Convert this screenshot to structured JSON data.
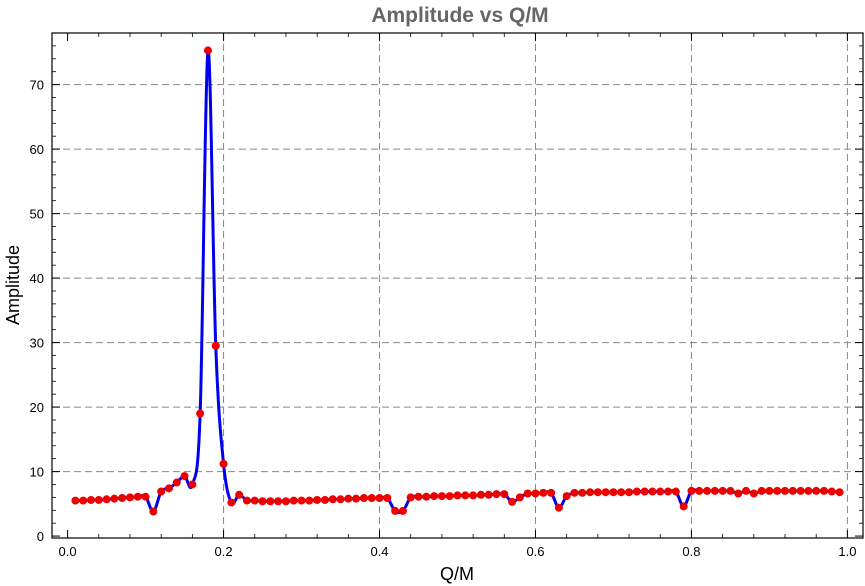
{
  "chart_data": {
    "type": "line",
    "title": "Amplitude vs Q/M",
    "xlabel": "Q/M",
    "ylabel": "Amplitude",
    "xlim": [
      -0.02,
      1.02
    ],
    "ylim": [
      -0.3,
      78
    ],
    "x_ticks": [
      0.0,
      0.2,
      0.4,
      0.6,
      0.8,
      1.0
    ],
    "x_tick_labels": [
      "0.0",
      "0.2",
      "0.4",
      "0.6",
      "0.8",
      "1.0"
    ],
    "y_ticks": [
      0,
      10,
      20,
      30,
      40,
      50,
      60,
      70
    ],
    "y_tick_labels": [
      "0",
      "10",
      "20",
      "30",
      "40",
      "50",
      "60",
      "70"
    ],
    "grid": true,
    "legend": "none",
    "colors": {
      "line": "#0000ee",
      "points": "#ee0000",
      "grid": "#888888",
      "title": "#666666"
    },
    "series": [
      {
        "x": [
          0.01,
          0.02,
          0.03,
          0.04,
          0.05,
          0.06,
          0.07,
          0.08,
          0.09,
          0.1,
          0.11,
          0.12,
          0.13,
          0.14,
          0.15,
          0.16,
          0.17,
          0.18,
          0.19,
          0.2,
          0.21,
          0.22,
          0.23,
          0.24,
          0.25,
          0.26,
          0.27,
          0.28,
          0.29,
          0.3,
          0.31,
          0.32,
          0.33,
          0.34,
          0.35,
          0.36,
          0.37,
          0.38,
          0.39,
          0.4,
          0.41,
          0.42,
          0.43,
          0.44,
          0.45,
          0.46,
          0.47,
          0.48,
          0.49,
          0.5,
          0.51,
          0.52,
          0.53,
          0.54,
          0.55,
          0.56,
          0.57,
          0.58,
          0.59,
          0.6,
          0.61,
          0.62,
          0.63,
          0.64,
          0.65,
          0.66,
          0.67,
          0.68,
          0.69,
          0.7,
          0.71,
          0.72,
          0.73,
          0.74,
          0.75,
          0.76,
          0.77,
          0.78,
          0.79,
          0.8,
          0.81,
          0.82,
          0.83,
          0.84,
          0.85,
          0.86,
          0.87,
          0.88,
          0.89,
          0.9,
          0.91,
          0.92,
          0.93,
          0.94,
          0.95,
          0.96,
          0.97,
          0.98,
          0.99
        ],
        "values": [
          5.5,
          5.5,
          5.6,
          5.6,
          5.7,
          5.8,
          5.9,
          6.0,
          6.1,
          6.1,
          3.8,
          6.9,
          7.4,
          8.3,
          9.3,
          8.0,
          19.0,
          75.3,
          29.5,
          11.2,
          5.2,
          6.4,
          5.5,
          5.5,
          5.4,
          5.4,
          5.4,
          5.4,
          5.5,
          5.5,
          5.5,
          5.6,
          5.6,
          5.7,
          5.7,
          5.8,
          5.8,
          5.9,
          5.9,
          5.9,
          5.9,
          3.9,
          3.9,
          6.0,
          6.1,
          6.1,
          6.2,
          6.2,
          6.2,
          6.3,
          6.3,
          6.3,
          6.4,
          6.4,
          6.5,
          6.5,
          5.3,
          6.0,
          6.6,
          6.6,
          6.7,
          6.7,
          4.4,
          6.2,
          6.7,
          6.7,
          6.8,
          6.8,
          6.8,
          6.8,
          6.8,
          6.8,
          6.9,
          6.9,
          6.9,
          6.9,
          6.9,
          6.9,
          4.6,
          7.0,
          7.0,
          7.0,
          7.0,
          7.0,
          7.0,
          6.6,
          7.0,
          6.6,
          7.0,
          7.0,
          7.0,
          7.0,
          7.0,
          7.0,
          7.0,
          7.0,
          7.0,
          6.9,
          6.8
        ]
      }
    ]
  }
}
